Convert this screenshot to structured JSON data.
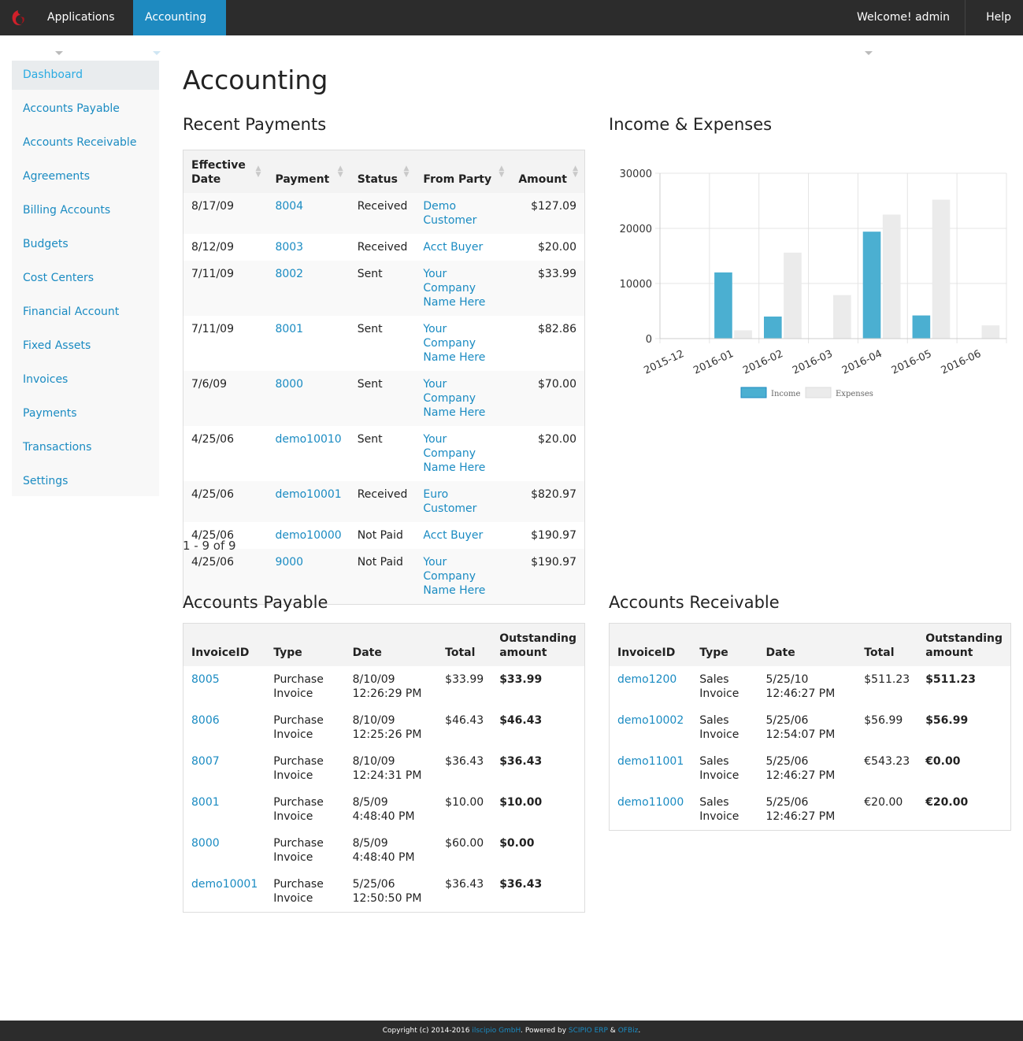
{
  "topbar": {
    "applications_label": "Applications",
    "accounting_label": "Accounting",
    "welcome_label": "Welcome! admin",
    "help_label": "Help"
  },
  "sidebar": {
    "items": [
      {
        "label": "Dashboard",
        "active": true
      },
      {
        "label": "Accounts Payable"
      },
      {
        "label": "Accounts Receivable"
      },
      {
        "label": "Agreements"
      },
      {
        "label": "Billing Accounts"
      },
      {
        "label": "Budgets"
      },
      {
        "label": "Cost Centers"
      },
      {
        "label": "Financial Account"
      },
      {
        "label": "Fixed Assets"
      },
      {
        "label": "Invoices"
      },
      {
        "label": "Payments"
      },
      {
        "label": "Transactions"
      },
      {
        "label": "Settings"
      }
    ]
  },
  "page_title": "Accounting",
  "recent_payments": {
    "title": "Recent Payments",
    "headers": [
      "Effective Date",
      "Payment",
      "Status",
      "From Party",
      "Amount"
    ],
    "rows": [
      {
        "date": "8/17/09",
        "payment": "8004",
        "status": "Received",
        "party": "Demo Customer",
        "amount": "$127.09"
      },
      {
        "date": "8/12/09",
        "payment": "8003",
        "status": "Received",
        "party": "Acct Buyer",
        "amount": "$20.00"
      },
      {
        "date": "7/11/09",
        "payment": "8002",
        "status": "Sent",
        "party": "Your Company Name Here",
        "amount": "$33.99"
      },
      {
        "date": "7/11/09",
        "payment": "8001",
        "status": "Sent",
        "party": "Your Company Name Here",
        "amount": "$82.86"
      },
      {
        "date": "7/6/09",
        "payment": "8000",
        "status": "Sent",
        "party": "Your Company Name Here",
        "amount": "$70.00"
      },
      {
        "date": "4/25/06",
        "payment": "demo10010",
        "status": "Sent",
        "party": "Your Company Name Here",
        "amount": "$20.00"
      },
      {
        "date": "4/25/06",
        "payment": "demo10001",
        "status": "Received",
        "party": "Euro Customer",
        "amount": "$820.97"
      },
      {
        "date": "4/25/06",
        "payment": "demo10000",
        "status": "Not Paid",
        "party": "Acct Buyer",
        "amount": "$190.97"
      },
      {
        "date": "4/25/06",
        "payment": "9000",
        "status": "Not Paid",
        "party": "Your Company Name Here",
        "amount": "$190.97"
      }
    ],
    "pager": "1 - 9 of 9"
  },
  "income_expenses": {
    "title": "Income & Expenses"
  },
  "chart_data": {
    "type": "bar",
    "categories": [
      "2015-12",
      "2016-01",
      "2016-02",
      "2016-03",
      "2016-04",
      "2016-05",
      "2016-06"
    ],
    "series": [
      {
        "name": "Income",
        "color": "#4bafd1",
        "values": [
          0,
          12000,
          4000,
          0,
          19400,
          4200,
          0
        ]
      },
      {
        "name": "Expenses",
        "color": "#ebebeb",
        "values": [
          0,
          1500,
          15600,
          7900,
          22500,
          25200,
          2400
        ]
      }
    ],
    "yticks": [
      "0",
      "10000",
      "20000",
      "30000"
    ],
    "ylim": [
      0,
      30000
    ],
    "legend": "bottom"
  },
  "accounts_payable": {
    "title": "Accounts Payable",
    "headers": [
      "InvoiceID",
      "Type",
      "Date",
      "Total",
      "Outstanding amount"
    ],
    "rows": [
      {
        "id": "8005",
        "type": "Purchase Invoice",
        "date": "8/10/09 12:26:29 PM",
        "total": "$33.99",
        "outstanding": "$33.99"
      },
      {
        "id": "8006",
        "type": "Purchase Invoice",
        "date": "8/10/09 12:25:26 PM",
        "total": "$46.43",
        "outstanding": "$46.43"
      },
      {
        "id": "8007",
        "type": "Purchase Invoice",
        "date": "8/10/09 12:24:31 PM",
        "total": "$36.43",
        "outstanding": "$36.43"
      },
      {
        "id": "8001",
        "type": "Purchase Invoice",
        "date": "8/5/09 4:48:40 PM",
        "total": "$10.00",
        "outstanding": "$10.00"
      },
      {
        "id": "8000",
        "type": "Purchase Invoice",
        "date": "8/5/09 4:48:40 PM",
        "total": "$60.00",
        "outstanding": "$0.00"
      },
      {
        "id": "demo10001",
        "type": "Purchase Invoice",
        "date": "5/25/06 12:50:50 PM",
        "total": "$36.43",
        "outstanding": "$36.43"
      }
    ]
  },
  "accounts_receivable": {
    "title": "Accounts Receivable",
    "headers": [
      "InvoiceID",
      "Type",
      "Date",
      "Total",
      "Outstanding amount"
    ],
    "rows": [
      {
        "id": "demo1200",
        "type": "Sales Invoice",
        "date": "5/25/10 12:46:27 PM",
        "total": "$511.23",
        "outstanding": "$511.23"
      },
      {
        "id": "demo10002",
        "type": "Sales Invoice",
        "date": "5/25/06 12:54:07 PM",
        "total": "$56.99",
        "outstanding": "$56.99"
      },
      {
        "id": "demo11001",
        "type": "Sales Invoice",
        "date": "5/25/06 12:46:27 PM",
        "total": "€543.23",
        "outstanding": "€0.00"
      },
      {
        "id": "demo11000",
        "type": "Sales Invoice",
        "date": "5/25/06 12:46:27 PM",
        "total": "€20.00",
        "outstanding": "€20.00"
      }
    ]
  },
  "footer": {
    "prefix": "Copyright (c) 2014-2016 ",
    "company": "ilscipio GmbH",
    "mid": ". Powered by ",
    "erp": "SCIPIO ERP",
    "amp": " & ",
    "ofbiz": "OFBiz",
    "end": "."
  },
  "colors": {
    "topbar": "#2c2c2c",
    "accent": "#1e8ac0",
    "link": "#1a8bc2",
    "logo": "#d0202a"
  }
}
